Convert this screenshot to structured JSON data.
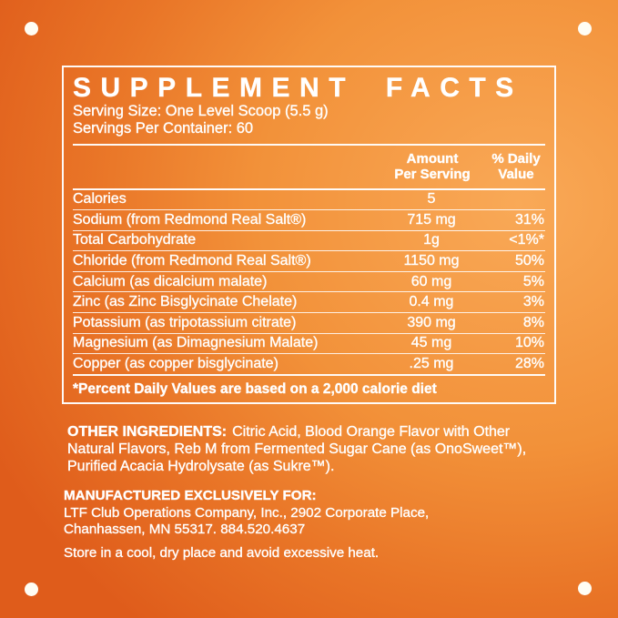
{
  "panel": {
    "title": "SUPPLEMENT FACTS",
    "serving_size": "Serving Size: One Level Scoop (5.5 g)",
    "servings_per_container": "Servings Per Container: 60",
    "columns": {
      "amount_line1": "Amount",
      "amount_line2": "Per Serving",
      "daily_line1": "% Daily",
      "daily_line2": "Value"
    },
    "rows": [
      {
        "name": "Calories",
        "amount": "5",
        "dv": ""
      },
      {
        "name": "Sodium (from Redmond Real Salt®)",
        "amount": "715 mg",
        "dv": "31%"
      },
      {
        "name": "Total Carbohydrate",
        "amount": "1g",
        "dv": "<1%*"
      },
      {
        "name": "Chloride (from Redmond Real Salt®)",
        "amount": "1150 mg",
        "dv": "50%"
      },
      {
        "name": "Calcium (as dicalcium malate)",
        "amount": "60 mg",
        "dv": "5%"
      },
      {
        "name": "Zinc (as Zinc Bisglycinate Chelate)",
        "amount": "0.4 mg",
        "dv": "3%"
      },
      {
        "name": "Potassium (as tripotassium citrate)",
        "amount": "390 mg",
        "dv": "8%"
      },
      {
        "name": "Magnesium (as Dimagnesium Malate)",
        "amount": "45 mg",
        "dv": "10%"
      },
      {
        "name": "Copper (as copper bisglycinate)",
        "amount": ".25 mg",
        "dv": "28%"
      }
    ],
    "footnote": "*Percent Daily Values are based on a 2,000 calorie diet"
  },
  "other_ingredients": {
    "label": "OTHER INGREDIENTS:",
    "text": "Citric Acid, Blood Orange Flavor with Other Natural Flavors, Reb M from Fermented Sugar Cane (as OnoSweet™), Purified Acacia Hydrolysate (as Sukre™)."
  },
  "manufacturer": {
    "label": "MANUFACTURED EXCLUSIVELY FOR:",
    "line1": "LTF Club Operations Company, Inc., 2902 Corporate Place,",
    "line2": "Chanhassen, MN 55317. 884.520.4637"
  },
  "storage": "Store in a cool, dry place and avoid excessive heat.",
  "colors": {
    "background_light": "#f9a957",
    "background_dark": "#df5c1b",
    "text": "#ffffff",
    "dot": "#fffdf4"
  }
}
